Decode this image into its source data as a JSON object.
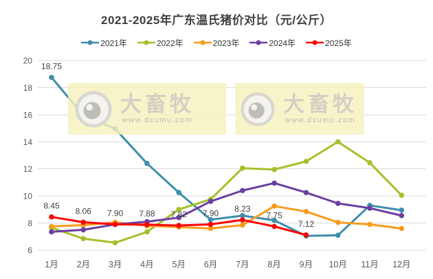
{
  "title": "2021-2025年广东温氏猪价对比（元/公斤）",
  "watermark": {
    "brand": "大畜牧",
    "url": "www.dxumu.com"
  },
  "colors": {
    "grid": "#dadada",
    "axis_text": "#595959",
    "title_text": "#3f3f3f",
    "data_label_text": "#404040",
    "series_2021": "#3e8dab",
    "series_2022": "#a3c12b",
    "series_2023": "#f89b1b",
    "series_2024": "#6b3fa0",
    "series_2025": "#fb0505"
  },
  "chart_data": {
    "type": "line",
    "title": "2021-2025年广东温氏猪价对比（元/公斤）",
    "categories": [
      "1月",
      "2月",
      "3月",
      "4月",
      "5月",
      "6月",
      "7月",
      "8月",
      "9月",
      "10月",
      "11月",
      "12月"
    ],
    "xlabel": "",
    "ylabel": "",
    "ylim": [
      6,
      20
    ],
    "ytick_step": 2,
    "grid": true,
    "legend_position": "top",
    "series": [
      {
        "name": "2021年",
        "color": "#3e8dab",
        "values": [
          18.75,
          15.95,
          14.95,
          12.4,
          10.25,
          8.25,
          8.55,
          8.2,
          7.05,
          7.1,
          9.3,
          8.95
        ],
        "labels": [
          "18.75",
          "",
          "",
          "",
          "",
          "",
          "",
          "",
          "",
          "",
          "",
          ""
        ]
      },
      {
        "name": "2022年",
        "color": "#a3c12b",
        "values": [
          7.65,
          6.85,
          6.55,
          7.35,
          9.0,
          9.75,
          12.05,
          11.95,
          12.55,
          14.0,
          12.45,
          10.05
        ],
        "labels": []
      },
      {
        "name": "2023年",
        "color": "#f89b1b",
        "values": [
          7.75,
          7.85,
          8.05,
          7.8,
          7.7,
          7.6,
          7.85,
          9.25,
          8.85,
          8.05,
          7.9,
          7.6
        ],
        "labels": []
      },
      {
        "name": "2024年",
        "color": "#6b3fa0",
        "values": [
          7.35,
          7.5,
          7.9,
          8.1,
          8.4,
          9.6,
          10.4,
          10.95,
          10.25,
          9.45,
          9.1,
          8.55
        ],
        "labels": []
      },
      {
        "name": "2025年",
        "color": "#fb0505",
        "values": [
          8.45,
          8.06,
          7.9,
          7.88,
          7.82,
          7.9,
          8.23,
          7.75,
          7.12
        ],
        "labels": [
          "8.45",
          "8.06",
          "7.90",
          "7.88",
          "7.82",
          "7.90",
          "8.23",
          "7.75",
          "7.12"
        ]
      }
    ]
  }
}
